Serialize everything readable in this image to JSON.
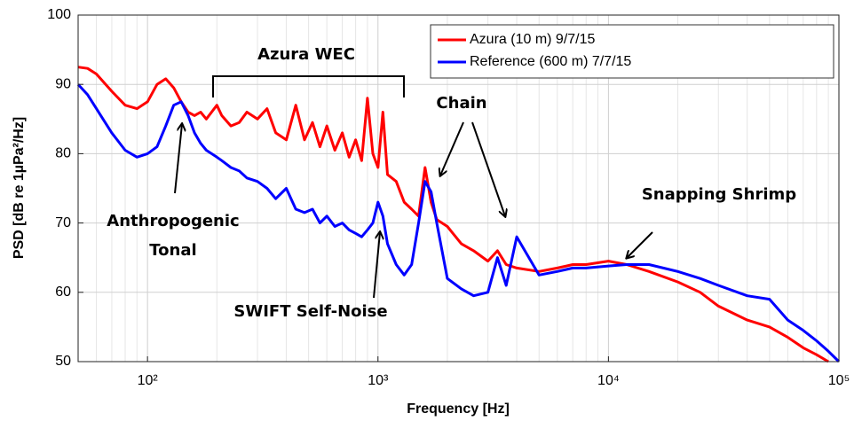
{
  "chart_data": {
    "type": "line",
    "x_label": "Frequency [Hz]",
    "y_label": "PSD [dB re 1µPa²/Hz]",
    "log_x": true,
    "grid": true,
    "legend": "upper right",
    "xlim": [
      50,
      100000
    ],
    "xticks": [
      {
        "value": 100,
        "label": "10²"
      },
      {
        "value": 1000,
        "label": "10³"
      },
      {
        "value": 10000,
        "label": "10⁴"
      },
      {
        "value": 100000,
        "label": "10⁵"
      }
    ],
    "ylim": [
      50,
      100
    ],
    "yticks": [
      50,
      60,
      70,
      80,
      90,
      100
    ],
    "x": [
      50,
      55,
      60,
      70,
      80,
      90,
      100,
      110,
      120,
      130,
      140,
      150,
      160,
      170,
      180,
      200,
      210,
      230,
      250,
      270,
      300,
      330,
      360,
      400,
      440,
      480,
      520,
      560,
      600,
      650,
      700,
      750,
      800,
      850,
      900,
      950,
      1000,
      1050,
      1100,
      1200,
      1300,
      1400,
      1500,
      1600,
      1700,
      1800,
      2000,
      2300,
      2600,
      3000,
      3300,
      3600,
      4000,
      5000,
      6000,
      7000,
      8000,
      10000,
      12000,
      15000,
      20000,
      25000,
      30000,
      40000,
      50000,
      60000,
      70000,
      80000,
      90000,
      100000
    ],
    "series": [
      {
        "name": "Azura (10 m) 9/7/15",
        "color": "#ff0000",
        "values": [
          92.5,
          92.3,
          91.5,
          89,
          87,
          86.5,
          87.5,
          90,
          90.8,
          89.5,
          87.5,
          86,
          85.5,
          86,
          85,
          87,
          85.5,
          84,
          84.5,
          86,
          85,
          86.5,
          83,
          82,
          87,
          82,
          84.5,
          81,
          84,
          80.5,
          83,
          79.5,
          82,
          79,
          88,
          80,
          78,
          86,
          77,
          76,
          73,
          72,
          71,
          78,
          73,
          70.5,
          69.5,
          67,
          66,
          64.5,
          66,
          64,
          63.5,
          63,
          63.5,
          64,
          64,
          64.5,
          64,
          63,
          61.5,
          60,
          58,
          56,
          55,
          53.5,
          52,
          51,
          50,
          null
        ]
      },
      {
        "name": "Reference (600 m) 7/7/15",
        "color": "#0000ff",
        "values": [
          90,
          88.5,
          86.5,
          83,
          80.5,
          79.5,
          80,
          81,
          84,
          87,
          87.5,
          85.5,
          83,
          81.5,
          80.5,
          79.5,
          79,
          78,
          77.5,
          76.5,
          76,
          75,
          73.5,
          75,
          72,
          71.5,
          72,
          70,
          71,
          69.5,
          70,
          69,
          68.5,
          68,
          69,
          70,
          73,
          71,
          67,
          64,
          62.5,
          64,
          70,
          76,
          74.5,
          70,
          62,
          60.5,
          59.5,
          60,
          65,
          61,
          68,
          62.5,
          63,
          63.5,
          63.5,
          63.8,
          64,
          64,
          63,
          62,
          61,
          59.5,
          59,
          56,
          54.5,
          53,
          51.5,
          50
        ]
      }
    ],
    "annotations": [
      "Azura WEC",
      "Chain",
      "Snapping Shrimp",
      "Anthropogenic",
      "Tonal",
      "SWIFT Self-Noise"
    ]
  }
}
